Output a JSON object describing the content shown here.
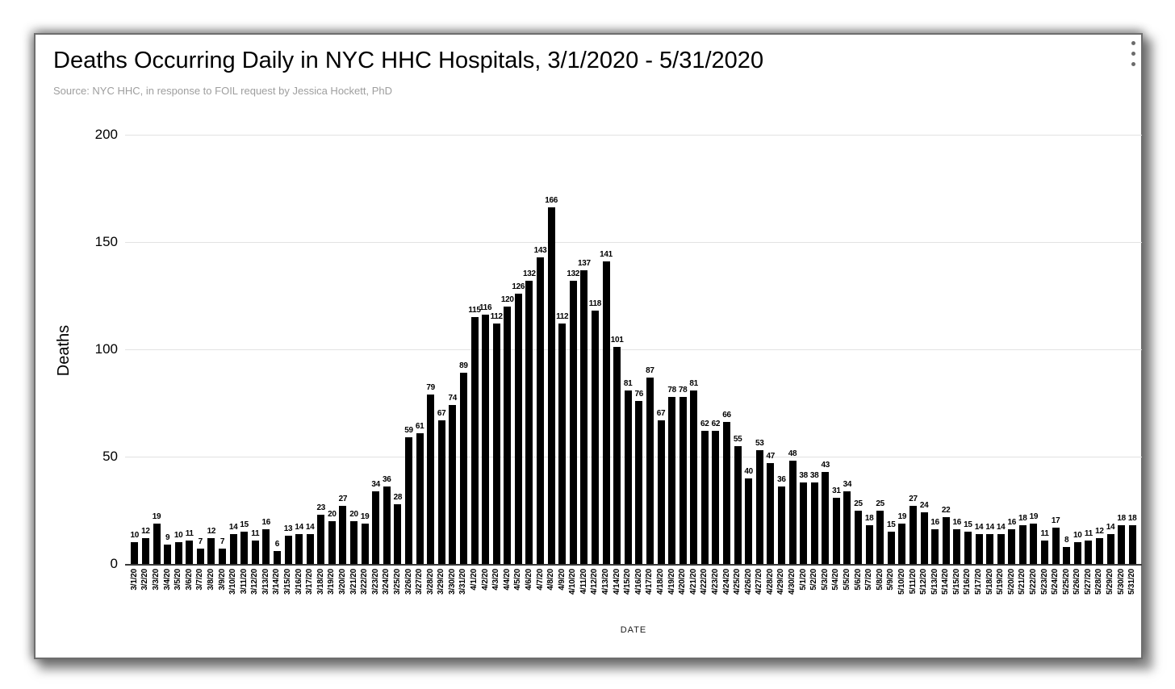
{
  "card": {
    "title": "Deaths Occurring Daily in NYC HHC Hospitals, 3/1/2020 - 5/31/2020",
    "subtitle": "Source: NYC HHC, in response to FOIL request by Jessica Hockett, PhD",
    "menu_icon": "kebab-menu-icon"
  },
  "chart_data": {
    "type": "bar",
    "title": "Deaths Occurring Daily in NYC HHC Hospitals, 3/1/2020 - 5/31/2020",
    "subtitle": "Source: NYC HHC, in response to FOIL request by Jessica Hockett, PhD",
    "xlabel": "DATE",
    "ylabel": "Deaths",
    "ylim": [
      0,
      200
    ],
    "yticks": [
      0,
      50,
      100,
      150,
      200
    ],
    "grid": true,
    "legend_position": "none",
    "bar_color": "#000000",
    "gridline_color": "#e2e2e2",
    "categories": [
      "3/1/20",
      "3/2/20",
      "3/3/20",
      "3/4/20",
      "3/5/20",
      "3/6/20",
      "3/7/20",
      "3/8/20",
      "3/9/20",
      "3/10/20",
      "3/11/20",
      "3/12/20",
      "3/13/20",
      "3/14/20",
      "3/15/20",
      "3/16/20",
      "3/17/20",
      "3/18/20",
      "3/19/20",
      "3/20/20",
      "3/21/20",
      "3/22/20",
      "3/23/20",
      "3/24/20",
      "3/25/20",
      "3/26/20",
      "3/27/20",
      "3/28/20",
      "3/29/20",
      "3/30/20",
      "3/31/20",
      "4/1/20",
      "4/2/20",
      "4/3/20",
      "4/4/20",
      "4/5/20",
      "4/6/20",
      "4/7/20",
      "4/8/20",
      "4/9/20",
      "4/10/20",
      "4/11/20",
      "4/12/20",
      "4/13/20",
      "4/14/20",
      "4/15/20",
      "4/16/20",
      "4/17/20",
      "4/18/20",
      "4/19/20",
      "4/20/20",
      "4/21/20",
      "4/22/20",
      "4/23/20",
      "4/24/20",
      "4/25/20",
      "4/26/20",
      "4/27/20",
      "4/28/20",
      "4/29/20",
      "4/30/20",
      "5/1/20",
      "5/2/20",
      "5/3/20",
      "5/4/20",
      "5/5/20",
      "5/6/20",
      "5/7/20",
      "5/8/20",
      "5/9/20",
      "5/10/20",
      "5/11/20",
      "5/12/20",
      "5/13/20",
      "5/14/20",
      "5/15/20",
      "5/16/20",
      "5/17/20",
      "5/18/20",
      "5/19/20",
      "5/20/20",
      "5/21/20",
      "5/22/20",
      "5/23/20",
      "5/24/20",
      "5/25/20",
      "5/26/20",
      "5/27/20",
      "5/28/20",
      "5/29/20",
      "5/30/20",
      "5/31/20"
    ],
    "values": [
      10,
      12,
      19,
      9,
      10,
      11,
      7,
      12,
      7,
      14,
      15,
      11,
      16,
      6,
      13,
      14,
      14,
      23,
      20,
      27,
      20,
      19,
      34,
      36,
      28,
      59,
      61,
      79,
      67,
      74,
      89,
      115,
      116,
      112,
      120,
      126,
      132,
      143,
      166,
      112,
      132,
      137,
      118,
      141,
      101,
      81,
      76,
      87,
      67,
      78,
      78,
      81,
      62,
      62,
      66,
      55,
      40,
      53,
      47,
      36,
      48,
      38,
      38,
      43,
      31,
      34,
      25,
      18,
      25,
      15,
      19,
      27,
      24,
      16,
      22,
      16,
      15,
      14,
      14,
      14,
      16,
      18,
      19,
      11,
      17,
      8,
      10,
      11,
      12,
      14,
      18,
      18
    ]
  }
}
